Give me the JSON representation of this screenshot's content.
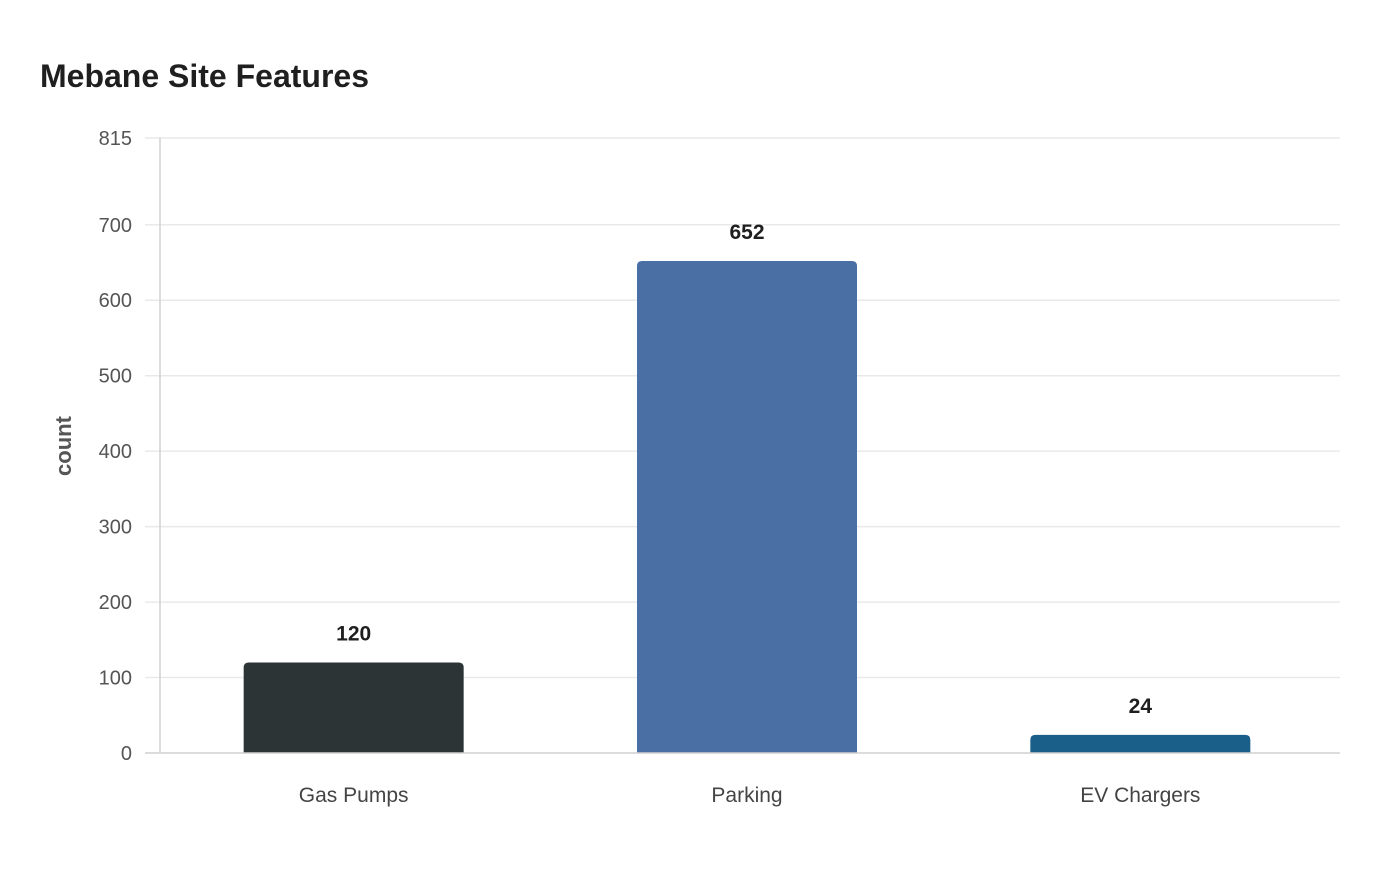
{
  "chart_data": {
    "type": "bar",
    "title": "Mebane Site Features",
    "xlabel": "",
    "ylabel": "count",
    "categories": [
      "Gas Pumps",
      "Parking",
      "EV Chargers"
    ],
    "values": [
      120,
      652,
      24
    ],
    "colors": [
      "#2d3436",
      "#4a6fa5",
      "#1a5f8a"
    ],
    "ylim": [
      0,
      815
    ],
    "yticks": [
      0,
      100,
      200,
      300,
      400,
      500,
      600,
      700,
      815
    ],
    "grid": true,
    "legend": "none"
  }
}
